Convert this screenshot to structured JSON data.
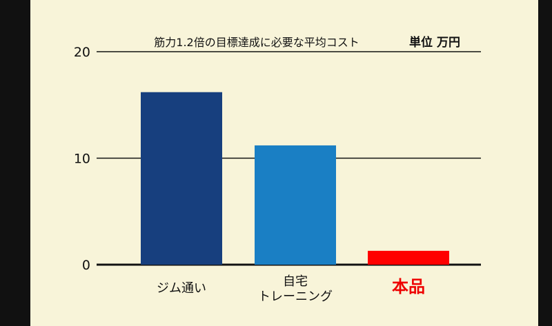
{
  "chart_data": {
    "type": "bar",
    "title": "筋力1.2倍の目標達成に必要な平均コスト",
    "unit": "単位 万円",
    "categories": [
      {
        "lines": [
          "ジム通い"
        ],
        "color": "#173f7e",
        "label_color": "#111111",
        "bold": false
      },
      {
        "lines": [
          "自宅",
          "トレーニング"
        ],
        "color": "#1a7fc4",
        "label_color": "#111111",
        "bold": false
      },
      {
        "lines": [
          "本品"
        ],
        "color": "#ff0000",
        "label_color": "#ee0000",
        "bold": true
      }
    ],
    "values": [
      16.2,
      11.2,
      1.3
    ],
    "ylim": [
      0,
      20
    ],
    "yticks": [
      0,
      10,
      20
    ],
    "grid": true
  }
}
